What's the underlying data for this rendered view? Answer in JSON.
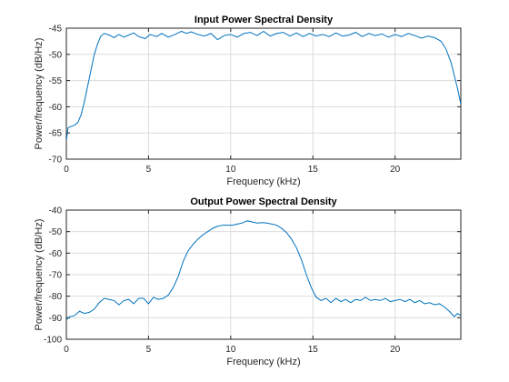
{
  "chart_data": [
    {
      "type": "line",
      "title": "Input Power Spectral Density",
      "xlabel": "Frequency (kHz)",
      "ylabel": "Power/frequency (dB/Hz)",
      "xlim": [
        0,
        24
      ],
      "ylim": [
        -70,
        -45
      ],
      "xticks": [
        0,
        5,
        10,
        15,
        20
      ],
      "yticks": [
        -70,
        -65,
        -60,
        -55,
        -50,
        -45
      ],
      "grid": true,
      "color": "#0072bd",
      "series": [
        {
          "x": [
            0,
            0.1,
            0.25,
            0.5,
            0.7,
            0.9,
            1.1,
            1.3,
            1.5,
            1.7,
            1.9,
            2.1,
            2.3,
            2.6,
            2.9,
            3.2,
            3.5,
            3.8,
            4.1,
            4.4,
            4.8,
            5.1,
            5.5,
            5.8,
            6.2,
            6.6,
            7.0,
            7.3,
            7.6,
            8.0,
            8.4,
            8.8,
            9.2,
            9.6,
            10.0,
            10.4,
            10.8,
            11.2,
            11.6,
            12.0,
            12.4,
            12.8,
            13.2,
            13.6,
            14.0,
            14.4,
            14.8,
            15.2,
            15.6,
            16.0,
            16.4,
            16.8,
            17.2,
            17.6,
            18.0,
            18.4,
            18.8,
            19.2,
            19.6,
            20.0,
            20.4,
            20.8,
            21.2,
            21.6,
            22.0,
            22.4,
            22.8,
            23.1,
            23.4,
            23.6,
            23.8,
            24.0
          ],
          "y": [
            -66.5,
            -64.0,
            -63.8,
            -63.5,
            -63.0,
            -61.5,
            -59.0,
            -56.0,
            -53.0,
            -50.0,
            -48.0,
            -46.5,
            -46.0,
            -46.3,
            -46.8,
            -46.2,
            -46.7,
            -46.3,
            -45.9,
            -46.6,
            -47.0,
            -46.2,
            -46.6,
            -46.0,
            -46.7,
            -46.2,
            -45.6,
            -46.0,
            -45.7,
            -46.2,
            -46.5,
            -46.0,
            -47.2,
            -46.4,
            -46.2,
            -46.7,
            -46.0,
            -45.8,
            -46.4,
            -45.6,
            -46.5,
            -46.0,
            -45.8,
            -46.5,
            -45.9,
            -46.6,
            -46.0,
            -46.5,
            -46.2,
            -46.6,
            -45.9,
            -46.5,
            -46.3,
            -45.8,
            -46.6,
            -46.0,
            -46.4,
            -46.1,
            -46.7,
            -46.2,
            -46.6,
            -46.0,
            -46.4,
            -46.9,
            -46.5,
            -46.8,
            -47.5,
            -49.0,
            -51.5,
            -54.0,
            -56.5,
            -59.5
          ]
        }
      ]
    },
    {
      "type": "line",
      "title": "Output Power Spectral Density",
      "xlabel": "Frequency (kHz)",
      "ylabel": "Power/frequency (dB/Hz)",
      "xlim": [
        0,
        24
      ],
      "ylim": [
        -100,
        -40
      ],
      "xticks": [
        0,
        5,
        10,
        15,
        20
      ],
      "yticks": [
        -100,
        -90,
        -80,
        -70,
        -60,
        -50,
        -40
      ],
      "grid": true,
      "color": "#0072bd",
      "series": [
        {
          "x": [
            0,
            0.2,
            0.5,
            0.8,
            1.1,
            1.4,
            1.7,
            2.0,
            2.3,
            2.6,
            2.9,
            3.2,
            3.5,
            3.8,
            4.1,
            4.4,
            4.7,
            5.0,
            5.3,
            5.6,
            5.9,
            6.2,
            6.5,
            6.8,
            7.1,
            7.4,
            7.7,
            8.0,
            8.3,
            8.6,
            8.9,
            9.2,
            9.5,
            9.8,
            10.1,
            10.4,
            10.7,
            11.0,
            11.3,
            11.6,
            11.9,
            12.2,
            12.5,
            12.8,
            13.1,
            13.4,
            13.7,
            14.0,
            14.3,
            14.6,
            14.9,
            15.2,
            15.5,
            15.8,
            16.1,
            16.4,
            16.7,
            17.0,
            17.3,
            17.6,
            17.9,
            18.2,
            18.5,
            18.8,
            19.1,
            19.4,
            19.7,
            20.0,
            20.3,
            20.6,
            20.9,
            21.2,
            21.5,
            21.8,
            22.1,
            22.4,
            22.7,
            23.0,
            23.3,
            23.6,
            23.8,
            24.0
          ],
          "y": [
            -91.0,
            -89.5,
            -89.0,
            -87.0,
            -88.0,
            -87.5,
            -86.0,
            -83.0,
            -81.0,
            -81.5,
            -82.0,
            -84.0,
            -82.0,
            -81.5,
            -83.5,
            -81.0,
            -81.0,
            -83.5,
            -80.5,
            -81.5,
            -81.0,
            -79.5,
            -76.0,
            -71.0,
            -64.0,
            -59.0,
            -56.0,
            -53.5,
            -51.5,
            -50.0,
            -48.5,
            -47.5,
            -47.0,
            -47.0,
            -47.0,
            -46.5,
            -46.0,
            -45.0,
            -45.5,
            -46.0,
            -45.8,
            -46.0,
            -46.5,
            -47.0,
            -48.5,
            -50.5,
            -53.5,
            -57.5,
            -63.0,
            -70.0,
            -76.0,
            -80.5,
            -82.0,
            -81.0,
            -83.0,
            -81.0,
            -82.5,
            -81.5,
            -83.0,
            -81.5,
            -82.0,
            -80.5,
            -82.0,
            -81.5,
            -82.0,
            -81.0,
            -82.5,
            -82.0,
            -81.5,
            -82.5,
            -81.5,
            -83.0,
            -82.0,
            -83.5,
            -83.0,
            -84.0,
            -83.5,
            -85.0,
            -87.0,
            -89.5,
            -88.0,
            -89.0
          ]
        }
      ]
    }
  ]
}
